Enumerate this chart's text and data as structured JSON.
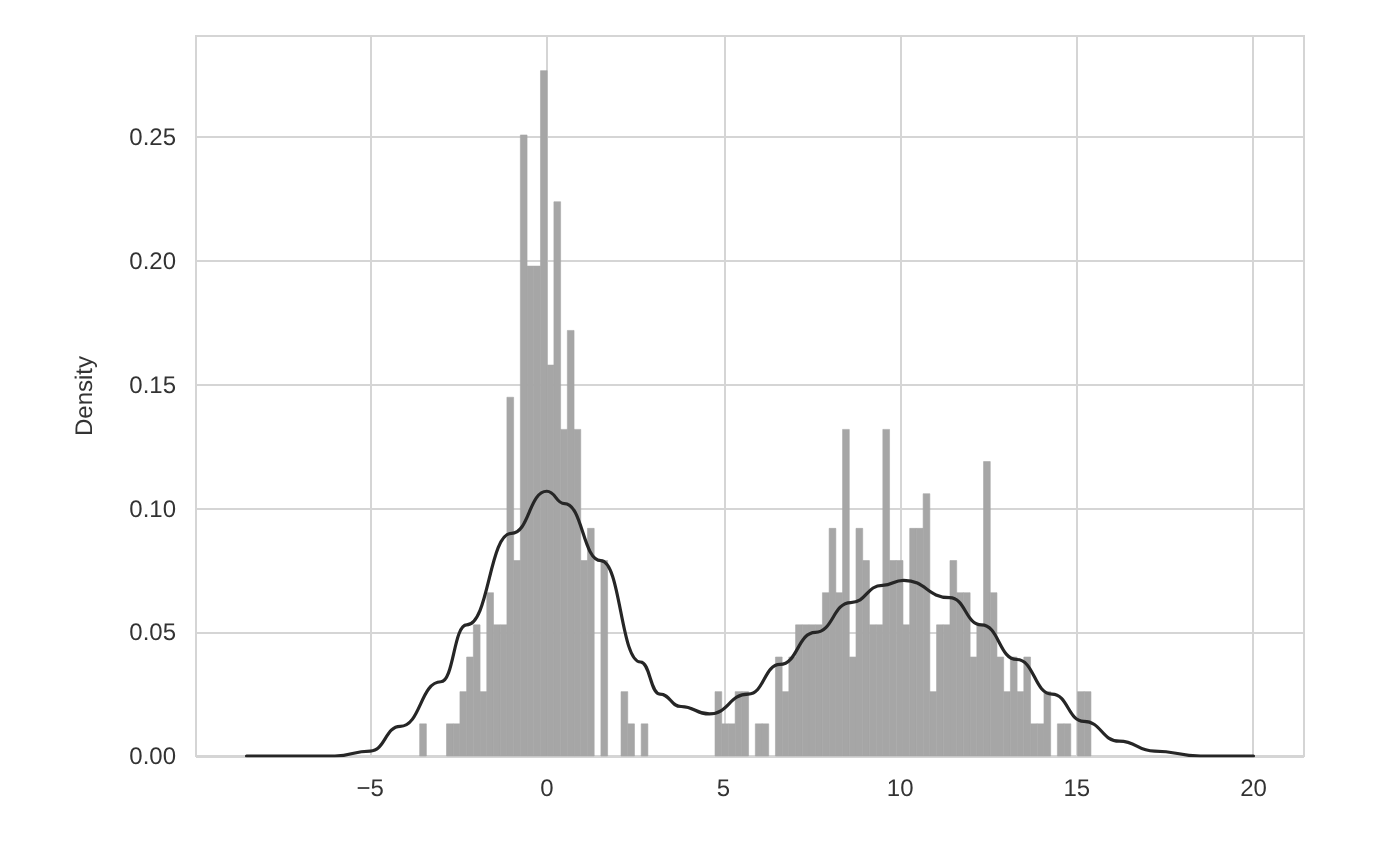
{
  "chart_data": {
    "type": "histogram",
    "ylabel": "Density",
    "color": "#a6a6a6",
    "bins": [
      -3.6,
      -3.41,
      -3.22,
      -3.03,
      -2.84,
      -2.65,
      -2.46,
      -2.27,
      -2.08,
      -1.89,
      -1.7,
      -1.51,
      -1.32,
      -1.13,
      -0.94,
      -0.75,
      -0.56,
      -0.37,
      -0.18,
      0.01,
      0.2,
      0.39,
      0.58,
      0.77,
      0.96,
      1.15,
      1.34,
      1.53,
      1.72,
      1.91,
      2.1,
      2.29,
      2.48,
      2.67,
      2.86,
      3.05,
      3.24,
      3.43,
      3.62,
      3.81,
      4.0,
      4.19,
      4.38,
      4.57,
      4.76,
      4.95,
      5.14,
      5.33,
      5.52,
      5.71,
      5.9,
      6.09,
      6.28,
      6.47,
      6.66,
      6.85,
      7.04,
      7.23,
      7.42,
      7.61,
      7.8,
      7.99,
      8.18,
      8.37,
      8.56,
      8.75,
      8.94,
      9.13,
      9.32,
      9.51,
      9.7,
      9.89,
      10.08,
      10.27,
      10.46,
      10.65,
      10.84,
      11.03,
      11.22,
      11.41,
      11.6,
      11.79,
      11.98,
      12.17,
      12.36,
      12.55,
      12.74,
      12.93,
      13.12,
      13.31,
      13.5,
      13.69,
      13.88,
      14.07,
      14.26,
      14.45,
      14.64,
      14.83,
      15.02,
      15.21,
      15.4
    ],
    "values": [
      0.013,
      0,
      0,
      0,
      0.013,
      0.013,
      0.026,
      0.04,
      0.053,
      0.026,
      0.066,
      0.053,
      0.053,
      0.145,
      0.079,
      0.251,
      0.198,
      0.198,
      0.277,
      0.158,
      0.224,
      0.132,
      0.172,
      0.132,
      0.079,
      0.092,
      0,
      0.079,
      0,
      0,
      0.026,
      0.013,
      0,
      0.013,
      0,
      0,
      0,
      0,
      0,
      0,
      0,
      0,
      0,
      0,
      0.026,
      0.013,
      0.013,
      0.026,
      0.026,
      0,
      0.013,
      0.013,
      0,
      0.04,
      0.026,
      0.04,
      0.053,
      0.053,
      0.053,
      0.053,
      0.066,
      0.092,
      0.066,
      0.132,
      0.04,
      0.092,
      0.079,
      0.053,
      0.053,
      0.132,
      0.079,
      0.079,
      0.053,
      0.092,
      0.092,
      0.106,
      0.026,
      0.053,
      0.053,
      0.079,
      0.066,
      0.066,
      0.04,
      0.053,
      0.119,
      0.066,
      0.04,
      0.026,
      0.04,
      0.026,
      0.04,
      0.013,
      0.013,
      0.026,
      0,
      0.013,
      0.013,
      0,
      0.026,
      0.026
    ],
    "series": [
      {
        "type": "line",
        "color": "#262626",
        "marker": "none",
        "x": [
          -8.5,
          -6,
          -5,
          -4.15,
          -3,
          -2.27,
          -1,
          0,
          0.5,
          1.53,
          2.65,
          3.2,
          3.8,
          4.6,
          5.7,
          6.6,
          7.6,
          8.6,
          9.5,
          10.1,
          11.4,
          12.3,
          13.3,
          14.3,
          15.2,
          16.2,
          17.2,
          18.5,
          20
        ],
        "values": [
          0,
          0,
          0.002,
          0.012,
          0.03,
          0.053,
          0.09,
          0.107,
          0.102,
          0.079,
          0.038,
          0.025,
          0.02,
          0.017,
          0.025,
          0.037,
          0.05,
          0.062,
          0.069,
          0.071,
          0.064,
          0.053,
          0.039,
          0.025,
          0.014,
          0.006,
          0.002,
          0,
          0
        ]
      }
    ],
    "xlim": [
      -9.93,
      21.43
    ],
    "xticks": [
      {
        "value": -5,
        "label": "−5"
      },
      0,
      5,
      10,
      15,
      20
    ],
    "ylim": [
      0,
      0.291
    ],
    "yticks": [
      {
        "value": 0,
        "label": "0.00"
      },
      0.05,
      {
        "value": 0.1,
        "label": "0.10"
      },
      0.15,
      {
        "value": 0.2,
        "label": "0.20"
      },
      0.25
    ],
    "grid": true
  }
}
